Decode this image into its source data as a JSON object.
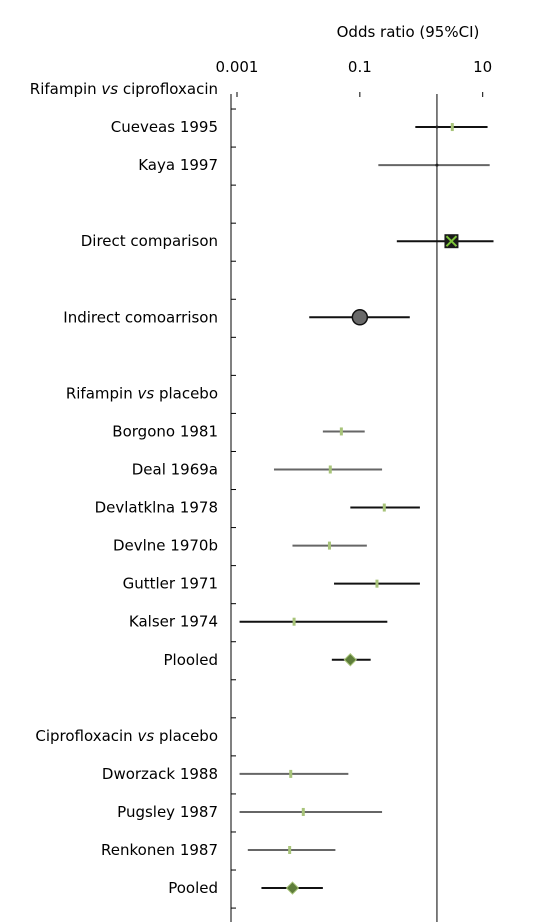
{
  "chart_data": {
    "type": "forest",
    "title": "Odds ratio (95%CI)",
    "x_scale": "log",
    "xlim": [
      0.001,
      30
    ],
    "x_ticks": [
      {
        "value": 0.001,
        "label": "0.001"
      },
      {
        "value": 0.1,
        "label": "0.1"
      },
      {
        "value": 10,
        "label": "10"
      }
    ],
    "reference_line": 1.8,
    "rows": [
      {
        "label": "Rifampin vs ciprofloxacin",
        "kind": "header",
        "pre": "Rifampin ",
        "vs": "vs",
        "post": " ciprofloxacin"
      },
      {
        "label": "Cueveas 1995",
        "kind": "study",
        "or": 3.2,
        "ci": [
          0.8,
          12.0
        ]
      },
      {
        "label": "Kaya 1997",
        "kind": "study",
        "or": 1.8,
        "ci": [
          0.2,
          13.0
        ]
      },
      {
        "label": "",
        "kind": "blank"
      },
      {
        "label": "Direct comparison",
        "kind": "direct",
        "or": 3.1,
        "ci": [
          0.4,
          15.0
        ]
      },
      {
        "label": "",
        "kind": "blank"
      },
      {
        "label": "Indirect comoarrison",
        "kind": "indirect",
        "or": 0.1,
        "ci": [
          0.015,
          0.65
        ]
      },
      {
        "label": "",
        "kind": "blank"
      },
      {
        "label": "Rifampin vs placebo",
        "kind": "header",
        "pre": "Rifampin ",
        "vs": "vs",
        "post": " placebo"
      },
      {
        "label": "Borgono 1981",
        "kind": "study",
        "or": 0.05,
        "ci": [
          0.025,
          0.12
        ]
      },
      {
        "label": "Deal 1969a",
        "kind": "study",
        "or": 0.033,
        "ci": [
          0.004,
          0.23
        ]
      },
      {
        "label": "Devlatklna 1978",
        "kind": "study",
        "or": 0.25,
        "ci": [
          0.07,
          0.95
        ]
      },
      {
        "label": "Devlne 1970b",
        "kind": "study",
        "or": 0.032,
        "ci": [
          0.008,
          0.13
        ]
      },
      {
        "label": "Guttler 1971",
        "kind": "study",
        "or": 0.19,
        "ci": [
          0.038,
          0.95
        ]
      },
      {
        "label": "Kalser 1974",
        "kind": "study",
        "or": 0.0085,
        "ci": [
          0.0011,
          0.28
        ]
      },
      {
        "label": "Plooled",
        "kind": "pooled",
        "or": 0.07,
        "ci": [
          0.035,
          0.15
        ]
      },
      {
        "label": "",
        "kind": "blank"
      },
      {
        "label": "Ciprofloxacin vs placebo",
        "kind": "header",
        "pre": "Ciprofloxacin ",
        "vs": "vs",
        "post": " placebo"
      },
      {
        "label": "Dworzack 1988",
        "kind": "study",
        "or": 0.0075,
        "ci": [
          0.0011,
          0.065
        ]
      },
      {
        "label": "Pugsley 1987",
        "kind": "study",
        "or": 0.012,
        "ci": [
          0.0011,
          0.23
        ]
      },
      {
        "label": "Renkonen 1987",
        "kind": "study",
        "or": 0.0072,
        "ci": [
          0.0015,
          0.04
        ]
      },
      {
        "label": "Pooled",
        "kind": "pooled",
        "or": 0.008,
        "ci": [
          0.0025,
          0.025
        ]
      }
    ],
    "colors": {
      "ci_line_dark": "#111111",
      "ci_line_grey": "#666666",
      "study_marker": "#a8c47a",
      "pooled_fill": "#5e7d3a",
      "indirect_fill": "#6a6a6a",
      "direct_cross": "#7ec63a",
      "axis": "#000000"
    }
  }
}
